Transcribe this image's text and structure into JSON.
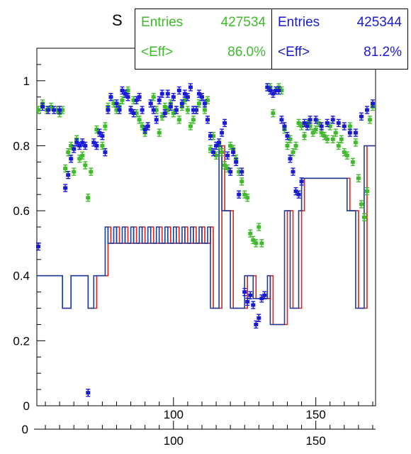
{
  "title_fragment": "S",
  "stats": {
    "green": {
      "entries_label": "Entries",
      "entries_value": "427534",
      "eff_label": "<Eff>",
      "eff_value": "86.0%"
    },
    "blue": {
      "entries_label": "Entries",
      "entries_value": "425344",
      "eff_label": "<Eff>",
      "eff_value": "81.2%"
    }
  },
  "colors": {
    "green": "#3fba2a",
    "blue": "#1a1ad6",
    "red": "#e0201a",
    "navy": "#1a3f99"
  },
  "chart_data": {
    "type": "scatter",
    "title": "",
    "xlabel": "",
    "ylabel": "",
    "xlim": [
      52,
      171
    ],
    "ylim": [
      0,
      1.1
    ],
    "grid": false,
    "yticks": [
      0,
      0.2,
      0.4,
      0.6,
      0.8,
      1
    ],
    "ytick_labels": [
      "0",
      "0.2",
      "0.4",
      "0.6",
      "0.8",
      "1"
    ],
    "xticks": [
      100,
      150
    ],
    "xtick_labels": [
      "100",
      "150"
    ],
    "lower_axis": {
      "ytick_labels": [
        "0"
      ],
      "xtick_labels": [
        "100",
        "150"
      ]
    },
    "series": [
      {
        "color": "green",
        "kind": "points",
        "x": [
          52.5,
          54,
          55.5,
          57,
          59,
          60,
          61,
          62,
          63,
          64,
          65,
          66,
          67,
          68,
          69,
          70,
          71,
          73,
          75,
          76,
          77,
          78,
          79,
          80,
          81,
          82,
          83,
          84,
          85,
          86,
          87,
          88,
          89,
          90,
          91,
          92,
          93,
          94,
          95,
          96,
          97,
          98,
          99,
          100,
          101,
          102,
          103,
          104,
          105,
          106,
          107,
          108,
          109,
          110,
          111,
          112,
          113,
          114,
          115,
          116,
          117,
          118,
          119,
          120,
          121,
          122,
          123,
          124,
          125,
          126,
          127,
          128,
          129,
          130,
          131,
          133,
          134,
          135,
          136,
          137,
          138,
          139,
          140,
          141,
          142,
          143,
          144,
          145,
          146,
          147,
          148,
          149,
          150,
          151,
          152,
          153,
          154,
          155,
          156,
          157,
          158,
          159,
          160,
          161,
          162,
          163,
          164,
          165,
          166,
          167,
          168,
          169,
          170
        ],
        "y": [
          0.91,
          0.93,
          0.91,
          0.92,
          0.91,
          0.9,
          0.91,
          0.73,
          0.78,
          0.8,
          0.72,
          0.82,
          0.76,
          0.77,
          0.74,
          0.64,
          0.72,
          0.85,
          0.8,
          0.86,
          0.92,
          0.95,
          0.93,
          0.91,
          0.92,
          0.94,
          0.96,
          0.97,
          0.91,
          0.94,
          0.9,
          0.88,
          0.86,
          0.84,
          0.86,
          0.93,
          0.95,
          0.91,
          0.84,
          0.89,
          0.92,
          0.91,
          0.93,
          0.9,
          0.91,
          0.88,
          0.92,
          0.94,
          0.91,
          0.86,
          0.88,
          0.91,
          0.93,
          0.95,
          0.91,
          0.94,
          0.79,
          0.83,
          0.77,
          0.8,
          0.78,
          0.74,
          0.73,
          0.8,
          0.79,
          0.76,
          0.72,
          0.69,
          0.65,
          0.64,
          0.53,
          0.51,
          0.5,
          0.55,
          0.5,
          0.98,
          0.98,
          0.9,
          0.97,
          0.98,
          0.97,
          0.85,
          0.8,
          0.82,
          0.78,
          0.8,
          0.87,
          0.86,
          0.83,
          0.87,
          0.86,
          0.84,
          0.85,
          0.87,
          0.84,
          0.83,
          0.82,
          0.86,
          0.82,
          0.84,
          0.8,
          0.82,
          0.78,
          0.77,
          0.86,
          0.75,
          0.81,
          0.7,
          0.62,
          0.58,
          0.66,
          0.88,
          0.92
        ]
      },
      {
        "color": "blue",
        "kind": "points",
        "x": [
          52.5,
          54,
          56,
          58,
          60,
          62,
          63,
          64,
          65,
          66,
          67,
          68,
          69,
          70,
          72,
          73,
          74,
          75,
          76,
          77,
          78,
          80,
          81,
          82,
          83,
          84,
          85,
          86,
          87,
          88,
          89,
          90,
          91,
          92,
          93,
          94,
          95,
          96,
          97,
          98,
          99,
          100,
          101,
          102,
          103,
          104,
          105,
          106,
          107,
          108,
          109,
          110,
          111,
          112,
          113,
          114,
          115,
          116,
          117,
          118,
          119,
          120,
          121,
          122,
          123,
          124,
          125,
          126,
          127,
          128,
          129,
          130,
          131,
          132,
          133,
          134,
          135,
          136,
          137,
          138,
          139,
          140,
          141,
          142,
          143,
          144,
          145,
          146,
          147,
          148,
          150,
          152,
          154,
          156,
          158,
          160,
          162,
          164,
          166,
          168,
          170
        ],
        "y": [
          0.49,
          0.92,
          0.91,
          0.91,
          0.91,
          0.67,
          0.71,
          0.76,
          0.79,
          0.81,
          0.8,
          0.81,
          0.8,
          0.04,
          0.81,
          0.8,
          0.84,
          0.83,
          0.78,
          0.91,
          0.95,
          0.93,
          0.91,
          0.97,
          0.96,
          0.95,
          0.91,
          0.9,
          0.94,
          0.95,
          0.91,
          0.85,
          0.86,
          0.93,
          0.91,
          0.88,
          0.94,
          0.96,
          0.9,
          0.96,
          0.92,
          0.95,
          0.91,
          0.97,
          0.93,
          0.96,
          0.95,
          0.98,
          0.91,
          0.91,
          0.96,
          0.95,
          0.93,
          0.88,
          0.83,
          0.78,
          0.8,
          0.81,
          0.84,
          0.87,
          0.77,
          0.72,
          0.78,
          0.75,
          0.65,
          0.72,
          0.35,
          0.32,
          0.34,
          0.31,
          0.25,
          0.27,
          0.33,
          0.34,
          0.98,
          0.97,
          0.96,
          0.97,
          0.97,
          0.88,
          0.86,
          0.83,
          0.76,
          0.72,
          0.66,
          0.65,
          0.69,
          0.87,
          0.86,
          0.88,
          0.88,
          0.86,
          0.87,
          0.88,
          0.87,
          0.86,
          0.84,
          0.84,
          0.89,
          0.91,
          0.93
        ]
      },
      {
        "color": "red",
        "kind": "step",
        "x": [
          52,
          61,
          64,
          70,
          73,
          77,
          78,
          80,
          81,
          83,
          84,
          86,
          87,
          89,
          90,
          92,
          93,
          95,
          96,
          98,
          99,
          101,
          102,
          104,
          105,
          107,
          108,
          110,
          111,
          113,
          114,
          117,
          118,
          121,
          122,
          126,
          129,
          134,
          135,
          140,
          142,
          145,
          146,
          148,
          149,
          152,
          155,
          158,
          162,
          165,
          168,
          171
        ],
        "y": [
          0.4,
          0.3,
          0.4,
          0.3,
          0.4,
          0.55,
          0.5,
          0.55,
          0.5,
          0.55,
          0.5,
          0.55,
          0.5,
          0.55,
          0.5,
          0.55,
          0.5,
          0.55,
          0.5,
          0.55,
          0.5,
          0.55,
          0.5,
          0.55,
          0.5,
          0.55,
          0.5,
          0.55,
          0.5,
          0.55,
          0.3,
          0.8,
          0.6,
          0.3,
          0.3,
          0.4,
          0.33,
          0.4,
          0.25,
          0.6,
          0.3,
          0.6,
          0.7,
          0.7,
          0.7,
          0.7,
          0.7,
          0.7,
          0.6,
          0.3,
          0.8,
          0.8
        ]
      },
      {
        "color": "navy",
        "kind": "step",
        "x": [
          52,
          61,
          64,
          70,
          72,
          76,
          77,
          79,
          80,
          82,
          83,
          85,
          86,
          88,
          89,
          91,
          92,
          94,
          95,
          97,
          98,
          100,
          101,
          103,
          104,
          106,
          107,
          109,
          110,
          112,
          113,
          116,
          117,
          120,
          121,
          125,
          128,
          133,
          134,
          139,
          141,
          144,
          145,
          147,
          148,
          151,
          154,
          157,
          161,
          164,
          167,
          171
        ],
        "y": [
          0.4,
          0.3,
          0.4,
          0.3,
          0.4,
          0.55,
          0.5,
          0.55,
          0.5,
          0.55,
          0.5,
          0.55,
          0.5,
          0.55,
          0.5,
          0.55,
          0.5,
          0.55,
          0.5,
          0.55,
          0.5,
          0.55,
          0.5,
          0.55,
          0.5,
          0.55,
          0.5,
          0.55,
          0.5,
          0.55,
          0.3,
          0.8,
          0.6,
          0.3,
          0.3,
          0.4,
          0.33,
          0.4,
          0.25,
          0.6,
          0.3,
          0.6,
          0.7,
          0.7,
          0.7,
          0.7,
          0.7,
          0.7,
          0.6,
          0.3,
          0.8,
          0.8
        ]
      }
    ]
  }
}
